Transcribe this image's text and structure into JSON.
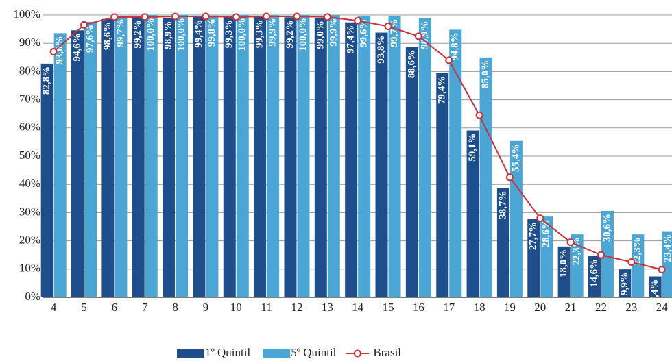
{
  "chart_data": {
    "type": "bar",
    "categories": [
      "4",
      "5",
      "6",
      "7",
      "8",
      "9",
      "10",
      "11",
      "12",
      "13",
      "14",
      "15",
      "16",
      "17",
      "18",
      "19",
      "20",
      "21",
      "22",
      "23",
      "24"
    ],
    "series": [
      {
        "name": "1º Quintil",
        "color": "#1f4e8c",
        "type": "bar",
        "values": [
          82.8,
          94.6,
          98.6,
          99.2,
          98.9,
          99.4,
          99.3,
          99.3,
          99.2,
          99.0,
          97.4,
          93.8,
          88.6,
          79.4,
          59.1,
          38.7,
          27.7,
          18.0,
          14.6,
          9.9,
          7.4
        ],
        "value_labels": [
          "82,8%",
          "94,6%",
          "98,6%",
          "99,2%",
          "98,9%",
          "99,4%",
          "99,3%",
          "99,3%",
          "99,2%",
          "99,0%",
          "97,4%",
          "93,8%",
          "88,6%",
          "79,4%",
          "59,1%",
          "38,7%",
          "27,7%",
          "18,0%",
          "14,6%",
          "9,9%",
          "7,4%"
        ]
      },
      {
        "name": "5º Quintil",
        "color": "#4ba6d6",
        "type": "bar",
        "values": [
          93.6,
          97.6,
          99.7,
          100.0,
          100.0,
          99.8,
          100.0,
          99.9,
          100.0,
          99.9,
          99.6,
          99.7,
          98.9,
          94.8,
          85.0,
          55.4,
          28.6,
          22.3,
          30.6,
          22.3,
          23.4
        ],
        "value_labels": [
          "93,6%",
          "97,6%",
          "99,7%",
          "100,0%",
          "100,0%",
          "99,8%",
          "100,0%",
          "99,9%",
          "100,0%",
          "99,9%",
          "99,6%",
          "99,7%",
          "98,9%",
          "94,8%",
          "85,0%",
          "55,4%",
          "28,6%",
          "22,3%",
          "30,6%",
          "22,3%",
          "23,4%"
        ]
      },
      {
        "name": "Brasil",
        "color": "#c8323a",
        "type": "line",
        "values": [
          87,
          96.5,
          99.3,
          99.3,
          99.5,
          99.5,
          99.3,
          99.5,
          99.5,
          99.3,
          98,
          96,
          92.5,
          84,
          64.5,
          42.5,
          28,
          19.5,
          15,
          12.5,
          9.8
        ]
      }
    ],
    "ylim": [
      0,
      100
    ],
    "yticks": [
      {
        "value": 0,
        "label": "0%"
      },
      {
        "value": 10,
        "label": "10%"
      },
      {
        "value": 20,
        "label": "20%"
      },
      {
        "value": 30,
        "label": "30%"
      },
      {
        "value": 40,
        "label": "40%"
      },
      {
        "value": 50,
        "label": "50%"
      },
      {
        "value": 60,
        "label": "60%"
      },
      {
        "value": 70,
        "label": "70%"
      },
      {
        "value": 80,
        "label": "80%"
      },
      {
        "value": 90,
        "label": "90%"
      },
      {
        "value": 100,
        "label": "100%"
      }
    ],
    "grid": true
  }
}
